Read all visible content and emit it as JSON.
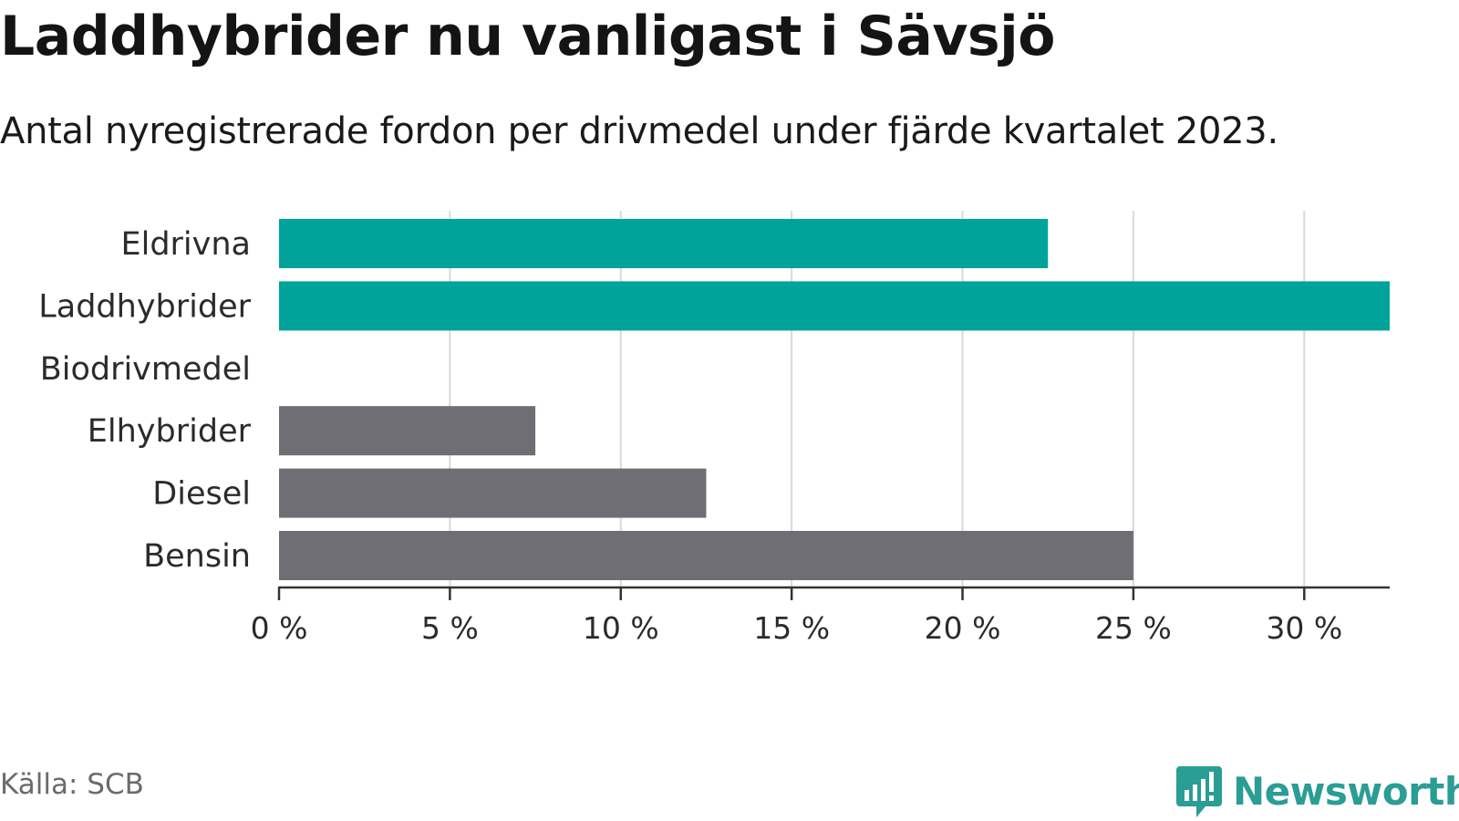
{
  "title": "Laddhybrider nu vanligast i Sävsjö",
  "subtitle": "Antal nyregistrerade fordon per drivmedel under fjärde kvartalet 2023.",
  "source": "Källa: SCB",
  "brand": {
    "name": "Newsworthy",
    "icon": "newsworthy-logo-icon",
    "color": "#2a9d94"
  },
  "colors": {
    "highlight": "#00a39a",
    "base": "#6f6e74",
    "grid": "#d9d9d9",
    "axis": "#333333"
  },
  "chart_data": {
    "type": "bar",
    "orientation": "horizontal",
    "categories": [
      "Eldrivna",
      "Laddhybrider",
      "Biodrivmedel",
      "Elhybrider",
      "Diesel",
      "Bensin"
    ],
    "values": [
      22.5,
      32.5,
      0,
      7.5,
      12.5,
      25
    ],
    "highlighted": [
      true,
      true,
      false,
      false,
      false,
      false
    ],
    "xlim": [
      0,
      32.5
    ],
    "xticks": [
      0,
      5,
      10,
      15,
      20,
      25,
      30
    ],
    "tick_labels": [
      "0 %",
      "5 %",
      "10 %",
      "15 %",
      "20 %",
      "25 %",
      "30 %"
    ],
    "grid": true,
    "xlabel": "",
    "ylabel": ""
  }
}
